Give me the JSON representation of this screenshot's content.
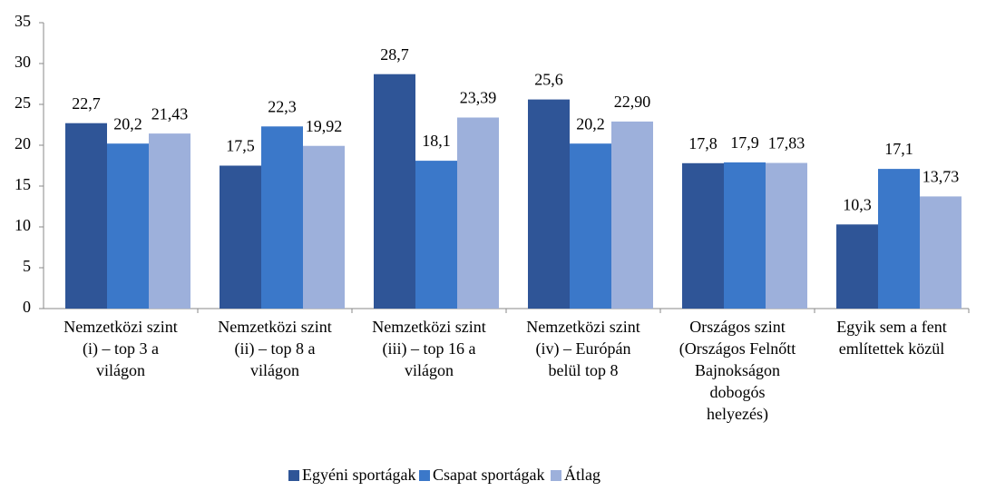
{
  "chart_data": {
    "type": "bar",
    "categories": [
      [
        "Nemzetközi szint",
        "(i) – top 3 a",
        "világon"
      ],
      [
        "Nemzetközi szint",
        "(ii) – top 8 a",
        "világon"
      ],
      [
        "Nemzetközi szint",
        "(iii) – top 16 a",
        "világon"
      ],
      [
        "Nemzetközi szint",
        "(iv) – Európán",
        "belül top 8"
      ],
      [
        "Országos szint",
        "(Országos Felnőtt",
        "Bajnokságon",
        "dobogós",
        "helyezés)"
      ],
      [
        "Egyik sem a fent",
        "említettek közül"
      ]
    ],
    "series": [
      {
        "name": "Egyéni sportágak",
        "color": "#2f5597",
        "values": [
          22.7,
          17.5,
          28.7,
          25.6,
          17.8,
          10.3
        ],
        "value_labels": [
          "22,7",
          "17,5",
          "28,7",
          "25,6",
          "17,8",
          "10,3"
        ]
      },
      {
        "name": "Csapat sportágak",
        "color": "#3b78c9",
        "values": [
          20.2,
          22.3,
          18.1,
          20.2,
          17.9,
          17.1
        ],
        "value_labels": [
          "20,2",
          "22,3",
          "18,1",
          "20,2",
          "17,9",
          "17,1"
        ]
      },
      {
        "name": "Átlag",
        "color": "#9db0db",
        "values": [
          21.43,
          19.92,
          23.39,
          22.9,
          17.83,
          13.73
        ],
        "value_labels": [
          "21,43",
          "19,92",
          "23,39",
          "22,90",
          "17,83",
          "13,73"
        ]
      }
    ],
    "ylim": [
      0,
      35
    ],
    "yticks": [
      0,
      5,
      10,
      15,
      20,
      25,
      30,
      35
    ],
    "legend": "bottom"
  }
}
